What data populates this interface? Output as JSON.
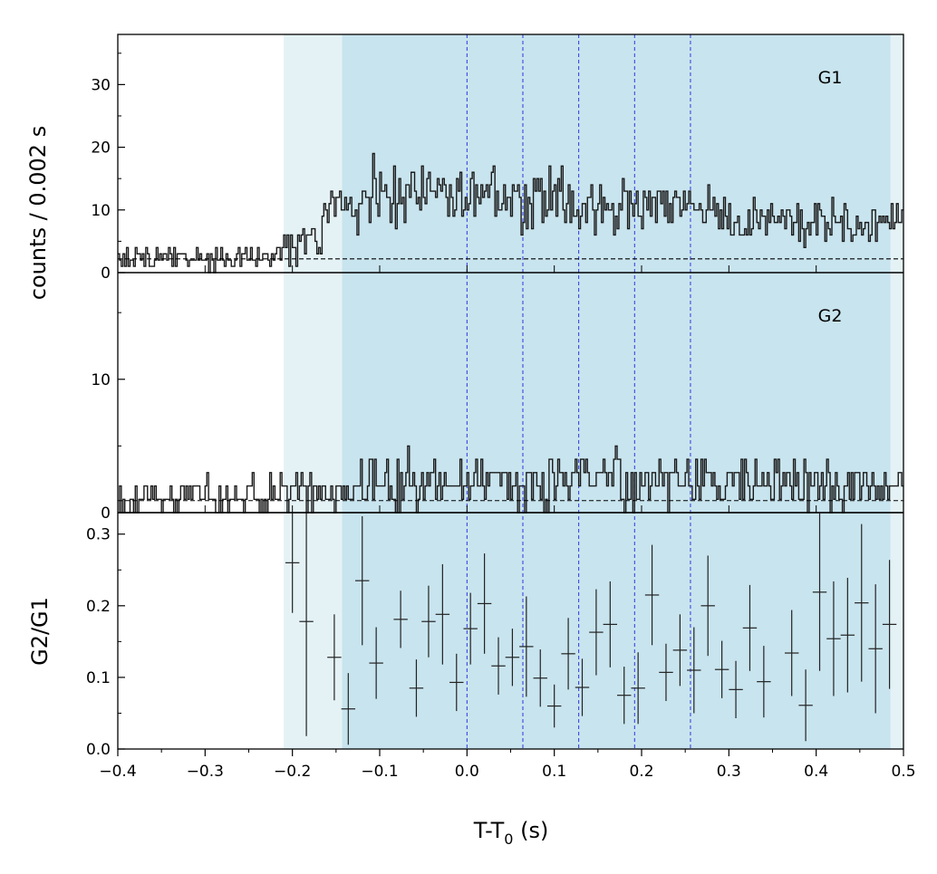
{
  "chart_data": {
    "type": "step-lightcurve",
    "xlabel_main": "T-T",
    "xlabel_sub": "0",
    "xlabel_unit": " (s)",
    "ylabel_counts": "counts /  0.002 s",
    "ylabel_ratio": "G2/G1",
    "xlim": [
      -0.4,
      0.5
    ],
    "x_ticks": [
      -0.4,
      -0.3,
      -0.2,
      -0.1,
      0.0,
      0.1,
      0.2,
      0.3,
      0.4,
      0.5
    ],
    "x_tick_labels": [
      "−0.4",
      "−0.3",
      "−0.2",
      "−0.1",
      "0.0",
      "0.1",
      "0.2",
      "0.3",
      "0.4",
      "0.5"
    ],
    "shaded_regions": [
      {
        "from": -0.21,
        "to": 0.5,
        "color": "#e4f2f6"
      },
      {
        "from": -0.143,
        "to": 0.485,
        "color": "#c8e4ee"
      }
    ],
    "vertical_markers": [
      0.0,
      0.064,
      0.128,
      0.192,
      0.256
    ],
    "marker_color": "#2f36e0",
    "panels": [
      {
        "name": "G1",
        "label": "G1",
        "ylim": [
          0,
          38
        ],
        "y_ticks": [
          0,
          10,
          20,
          30
        ],
        "y_tick_labels": [
          "0",
          "10",
          "20",
          "30"
        ],
        "background_level": 2.2,
        "segments": [
          {
            "t0": -0.4,
            "t1": -0.21,
            "mean": 2.3,
            "spread": 1.4
          },
          {
            "t0": -0.21,
            "t1": -0.165,
            "mean": 4.5,
            "spread": 1.8
          },
          {
            "t0": -0.165,
            "t1": -0.12,
            "mean": 9.5,
            "spread": 3.0
          },
          {
            "t0": -0.12,
            "t1": -0.06,
            "mean": 13.0,
            "spread": 4.5
          },
          {
            "t0": -0.06,
            "t1": 0.0,
            "mean": 12.0,
            "spread": 3.5
          },
          {
            "t0": 0.0,
            "t1": 0.12,
            "mean": 12.0,
            "spread": 4.0
          },
          {
            "t0": 0.12,
            "t1": 0.3,
            "mean": 10.5,
            "spread": 3.0
          },
          {
            "t0": 0.3,
            "t1": 0.5,
            "mean": 8.0,
            "spread": 2.6
          }
        ]
      },
      {
        "name": "G2",
        "label": "G2",
        "ylim": [
          0,
          18
        ],
        "y_ticks": [
          0,
          10
        ],
        "y_tick_labels": [
          "0",
          "10"
        ],
        "background_level": 0.9,
        "segments": [
          {
            "t0": -0.4,
            "t1": -0.21,
            "mean": 1.2,
            "spread": 1.0
          },
          {
            "t0": -0.21,
            "t1": -0.14,
            "mean": 1.6,
            "spread": 1.2
          },
          {
            "t0": -0.14,
            "t1": 0.5,
            "mean": 2.2,
            "spread": 1.5
          }
        ]
      }
    ],
    "ratio_panel": {
      "ylim": [
        0,
        0.33
      ],
      "y_ticks": [
        0.0,
        0.1,
        0.2,
        0.3
      ],
      "y_tick_labels": [
        "0.0",
        "0.1",
        "0.2",
        "0.3"
      ],
      "points": [
        {
          "x": -0.2,
          "y": 0.26,
          "err": 0.07
        },
        {
          "x": -0.184,
          "y": 0.178,
          "err": 0.16
        },
        {
          "x": -0.152,
          "y": 0.128,
          "err": 0.06
        },
        {
          "x": -0.136,
          "y": 0.056,
          "err": 0.05
        },
        {
          "x": -0.12,
          "y": 0.235,
          "err": 0.09
        },
        {
          "x": -0.104,
          "y": 0.12,
          "err": 0.05
        },
        {
          "x": -0.076,
          "y": 0.181,
          "err": 0.04
        },
        {
          "x": -0.058,
          "y": 0.085,
          "err": 0.04
        },
        {
          "x": -0.044,
          "y": 0.178,
          "err": 0.05
        },
        {
          "x": -0.028,
          "y": 0.188,
          "err": 0.07
        },
        {
          "x": -0.012,
          "y": 0.093,
          "err": 0.04
        },
        {
          "x": 0.004,
          "y": 0.168,
          "err": 0.05
        },
        {
          "x": 0.02,
          "y": 0.203,
          "err": 0.07
        },
        {
          "x": 0.036,
          "y": 0.116,
          "err": 0.04
        },
        {
          "x": 0.052,
          "y": 0.128,
          "err": 0.04
        },
        {
          "x": 0.068,
          "y": 0.143,
          "err": 0.07
        },
        {
          "x": 0.084,
          "y": 0.099,
          "err": 0.04
        },
        {
          "x": 0.1,
          "y": 0.06,
          "err": 0.03
        },
        {
          "x": 0.116,
          "y": 0.133,
          "err": 0.05
        },
        {
          "x": 0.132,
          "y": 0.086,
          "err": 0.04
        },
        {
          "x": 0.148,
          "y": 0.163,
          "err": 0.06
        },
        {
          "x": 0.164,
          "y": 0.174,
          "err": 0.06
        },
        {
          "x": 0.18,
          "y": 0.075,
          "err": 0.04
        },
        {
          "x": 0.196,
          "y": 0.085,
          "err": 0.05
        },
        {
          "x": 0.212,
          "y": 0.215,
          "err": 0.07
        },
        {
          "x": 0.228,
          "y": 0.107,
          "err": 0.04
        },
        {
          "x": 0.244,
          "y": 0.138,
          "err": 0.05
        },
        {
          "x": 0.26,
          "y": 0.11,
          "err": 0.06
        },
        {
          "x": 0.276,
          "y": 0.2,
          "err": 0.07
        },
        {
          "x": 0.292,
          "y": 0.111,
          "err": 0.04
        },
        {
          "x": 0.308,
          "y": 0.083,
          "err": 0.04
        },
        {
          "x": 0.324,
          "y": 0.169,
          "err": 0.06
        },
        {
          "x": 0.34,
          "y": 0.094,
          "err": 0.05
        },
        {
          "x": 0.372,
          "y": 0.134,
          "err": 0.06
        },
        {
          "x": 0.388,
          "y": 0.061,
          "err": 0.05
        },
        {
          "x": 0.404,
          "y": 0.219,
          "err": 0.11
        },
        {
          "x": 0.42,
          "y": 0.154,
          "err": 0.08
        },
        {
          "x": 0.436,
          "y": 0.159,
          "err": 0.08
        },
        {
          "x": 0.452,
          "y": 0.204,
          "err": 0.11
        },
        {
          "x": 0.468,
          "y": 0.14,
          "err": 0.09
        },
        {
          "x": 0.484,
          "y": 0.174,
          "err": 0.09
        }
      ]
    }
  }
}
